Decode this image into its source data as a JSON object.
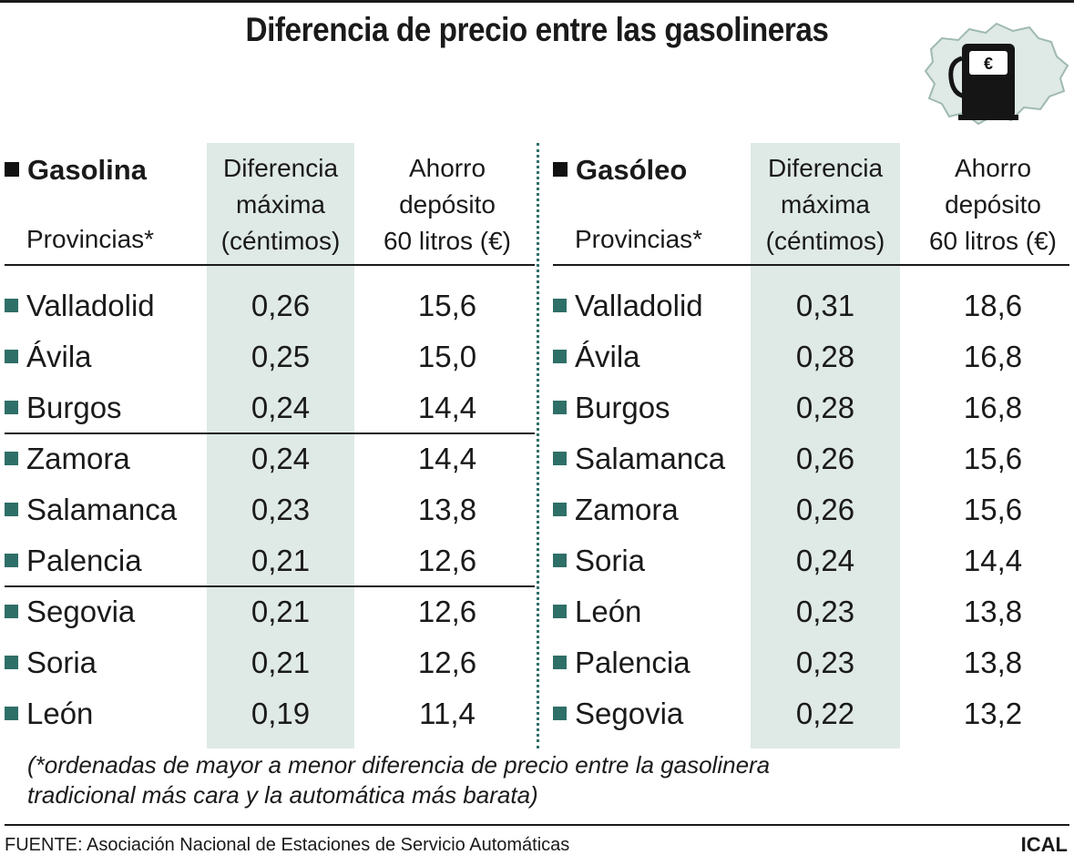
{
  "title": "Diferencia de precio entre las gasolineras",
  "logo": {
    "symbol": "€",
    "icon": "fuel-pump-map-icon"
  },
  "colors": {
    "accent": "#2e6f68",
    "shade": "#dfe9e6",
    "text": "#1a1a1a"
  },
  "chart_data": [
    {
      "type": "table",
      "title": "Gasolina",
      "row_header": "Provincias*",
      "columns": [
        "Diferencia máxima (céntimos)",
        "Ahorro depósito 60 litros (€)"
      ],
      "header_lines": {
        "diff": [
          "Diferencia",
          "máxima",
          "(céntimos)"
        ],
        "saving": [
          "Ahorro",
          "depósito",
          "60 litros (€)"
        ]
      },
      "rows": [
        {
          "provincia": "Valladolid",
          "diferencia": "0,26",
          "ahorro": "15,6"
        },
        {
          "provincia": "Ávila",
          "diferencia": "0,25",
          "ahorro": "15,0"
        },
        {
          "provincia": "Burgos",
          "diferencia": "0,24",
          "ahorro": "14,4"
        },
        {
          "provincia": "Zamora",
          "diferencia": "0,24",
          "ahorro": "14,4"
        },
        {
          "provincia": "Salamanca",
          "diferencia": "0,23",
          "ahorro": "13,8"
        },
        {
          "provincia": "Palencia",
          "diferencia": "0,21",
          "ahorro": "12,6"
        },
        {
          "provincia": "Segovia",
          "diferencia": "0,21",
          "ahorro": "12,6"
        },
        {
          "provincia": "Soria",
          "diferencia": "0,21",
          "ahorro": "12,6"
        },
        {
          "provincia": "León",
          "diferencia": "0,19",
          "ahorro": "11,4"
        }
      ]
    },
    {
      "type": "table",
      "title": "Gasóleo",
      "row_header": "Provincias*",
      "columns": [
        "Diferencia máxima (céntimos)",
        "Ahorro depósito 60 litros (€)"
      ],
      "header_lines": {
        "diff": [
          "Diferencia",
          "máxima",
          "(céntimos)"
        ],
        "saving": [
          "Ahorro",
          "depósito",
          "60 litros (€)"
        ]
      },
      "rows": [
        {
          "provincia": "Valladolid",
          "diferencia": "0,31",
          "ahorro": "18,6"
        },
        {
          "provincia": "Ávila",
          "diferencia": "0,28",
          "ahorro": "16,8"
        },
        {
          "provincia": "Burgos",
          "diferencia": "0,28",
          "ahorro": "16,8"
        },
        {
          "provincia": "Salamanca",
          "diferencia": "0,26",
          "ahorro": "15,6"
        },
        {
          "provincia": "Zamora",
          "diferencia": "0,26",
          "ahorro": "15,6"
        },
        {
          "provincia": "Soria",
          "diferencia": "0,24",
          "ahorro": "14,4"
        },
        {
          "provincia": "León",
          "diferencia": "0,23",
          "ahorro": "13,8"
        },
        {
          "provincia": "Palencia",
          "diferencia": "0,23",
          "ahorro": "13,8"
        },
        {
          "provincia": "Segovia",
          "diferencia": "0,22",
          "ahorro": "13,2"
        }
      ]
    }
  ],
  "note": {
    "line1": "(*ordenadas de mayor a menor diferencia de precio entre la gasolinera",
    "line2": "tradicional más cara y la automática más barata)"
  },
  "source": "FUENTE: Asociación Nacional de Estaciones de Servicio Automáticas",
  "credit": "ICAL"
}
